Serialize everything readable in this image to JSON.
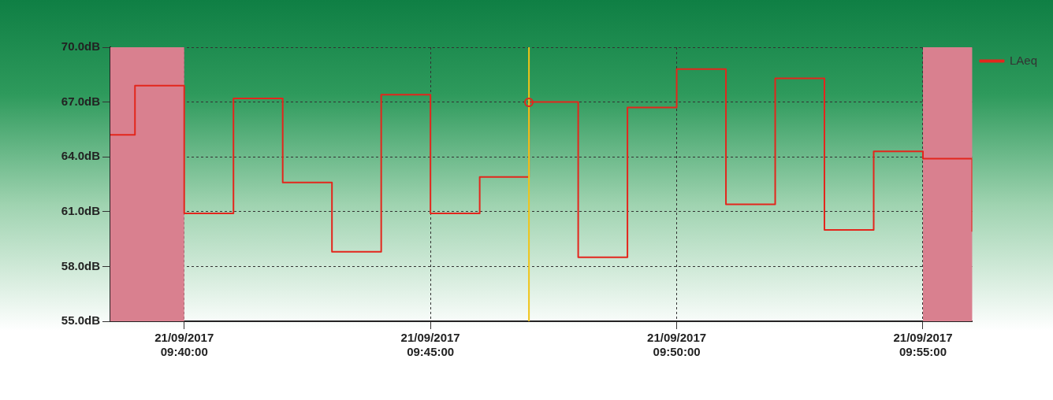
{
  "chart_data": {
    "type": "step",
    "x": [
      "2017-09-21T09:38:30",
      "2017-09-21T09:39",
      "2017-09-21T09:40",
      "2017-09-21T09:41",
      "2017-09-21T09:42",
      "2017-09-21T09:43",
      "2017-09-21T09:44",
      "2017-09-21T09:45",
      "2017-09-21T09:46",
      "2017-09-21T09:47",
      "2017-09-21T09:48",
      "2017-09-21T09:49",
      "2017-09-21T09:50",
      "2017-09-21T09:51",
      "2017-09-21T09:52",
      "2017-09-21T09:53",
      "2017-09-21T09:54",
      "2017-09-21T09:55",
      "2017-09-21T09:56"
    ],
    "series": [
      {
        "name": "LAeq",
        "color": "#e3261c",
        "values": [
          65.2,
          67.9,
          60.9,
          67.2,
          62.6,
          58.8,
          67.4,
          60.9,
          62.9,
          67.0,
          58.5,
          66.7,
          68.8,
          61.4,
          68.3,
          60.0,
          64.3,
          63.9,
          59.9
        ]
      }
    ],
    "xlim": [
      "2017-09-21T09:38:30",
      "2017-09-21T09:56"
    ],
    "xticks": [
      {
        "value": "2017-09-21T09:40",
        "label": "21/09/2017 09:40:00"
      },
      {
        "value": "2017-09-21T09:45",
        "label": "21/09/2017 09:45:00"
      },
      {
        "value": "2017-09-21T09:50",
        "label": "21/09/2017 09:50:00"
      },
      {
        "value": "2017-09-21T09:55",
        "label": "21/09/2017 09:55:00"
      }
    ],
    "ylim": [
      55,
      70
    ],
    "yticks": [
      {
        "value": 55,
        "label": "55.0dB"
      },
      {
        "value": 58,
        "label": "58.0dB"
      },
      {
        "value": 61,
        "label": "61.0dB"
      },
      {
        "value": 64,
        "label": "64.0dB"
      },
      {
        "value": 67,
        "label": "67.0dB"
      },
      {
        "value": 70,
        "label": "70.0dB"
      }
    ],
    "bands": [
      {
        "axis": "x",
        "from": "2017-09-21T09:38:30",
        "to": "2017-09-21T09:40",
        "color": "#d9808f"
      },
      {
        "axis": "x",
        "from": "2017-09-21T09:55",
        "to": "2017-09-21T09:56",
        "color": "#d9808f"
      }
    ],
    "ref_lines": [
      {
        "axis": "x",
        "value": "2017-09-21T09:47",
        "color": "#f0c419"
      }
    ],
    "grid": true,
    "legend": "top right"
  }
}
